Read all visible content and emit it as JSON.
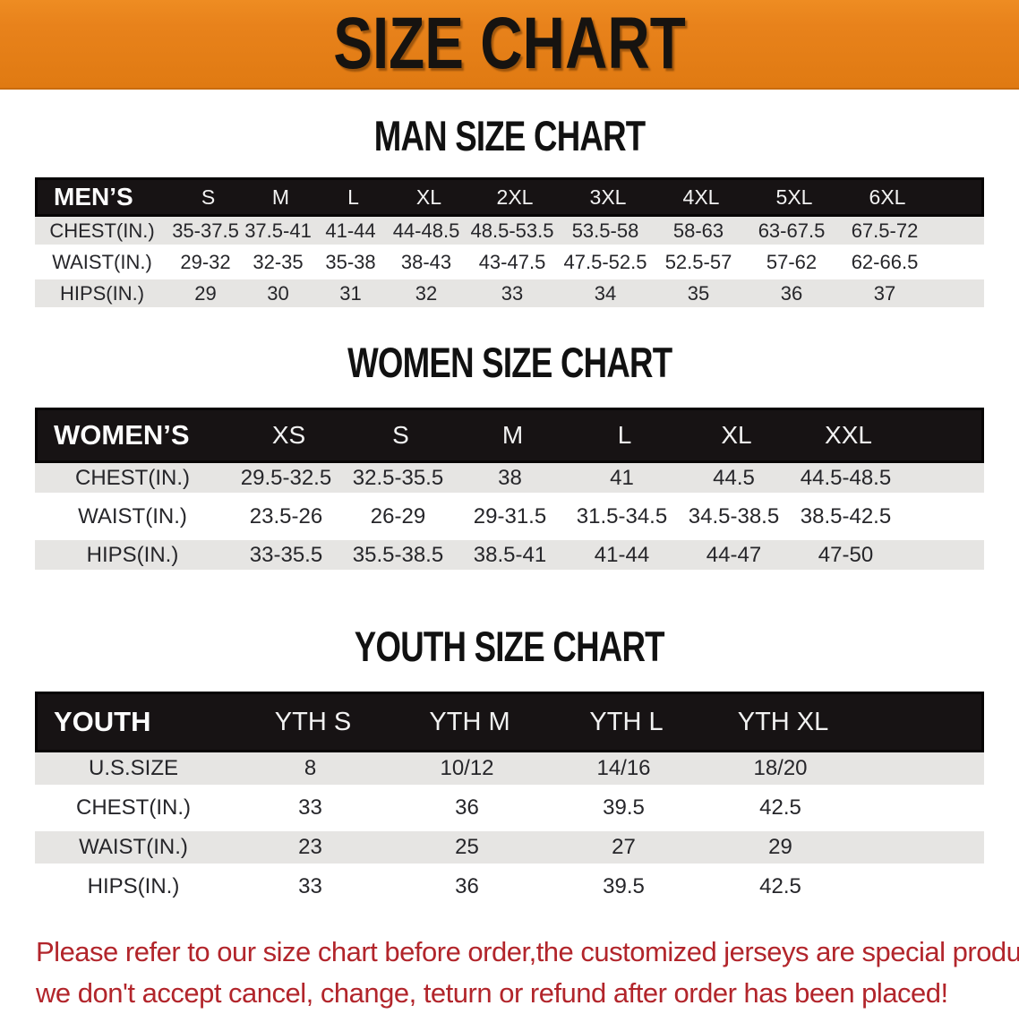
{
  "banner": {
    "title": "SIZE CHART"
  },
  "tables": [
    {
      "id": "men",
      "heading": "MAN SIZE CHART",
      "corner_label": "MEN’S",
      "sizes": [
        "S",
        "M",
        "L",
        "XL",
        "2XL",
        "3XL",
        "4XL",
        "5XL",
        "6XL"
      ],
      "rows": [
        {
          "label": "CHEST(IN.)",
          "values": [
            "35-37.5",
            "37.5-41",
            "41-44",
            "44-48.5",
            "48.5-53.5",
            "53.5-58",
            "58-63",
            "63-67.5",
            "67.5-72"
          ]
        },
        {
          "label": "WAIST(IN.)",
          "values": [
            "29-32",
            "32-35",
            "35-38",
            "38-43",
            "43-47.5",
            "47.5-52.5",
            "52.5-57",
            "57-62",
            "62-66.5"
          ]
        },
        {
          "label": "HIPS(IN.)",
          "values": [
            "29",
            "30",
            "31",
            "32",
            "33",
            "34",
            "35",
            "36",
            "37"
          ]
        }
      ]
    },
    {
      "id": "women",
      "heading": "WOMEN SIZE CHART",
      "corner_label": "WOMEN’S",
      "sizes": [
        "XS",
        "S",
        "M",
        "L",
        "XL",
        "XXL"
      ],
      "rows": [
        {
          "label": "CHEST(IN.)",
          "values": [
            "29.5-32.5",
            "32.5-35.5",
            "38",
            "41",
            "44.5",
            "44.5-48.5"
          ]
        },
        {
          "label": "WAIST(IN.)",
          "values": [
            "23.5-26",
            "26-29",
            "29-31.5",
            "31.5-34.5",
            "34.5-38.5",
            "38.5-42.5"
          ]
        },
        {
          "label": "HIPS(IN.)",
          "values": [
            "33-35.5",
            "35.5-38.5",
            "38.5-41",
            "41-44",
            "44-47",
            "47-50"
          ]
        }
      ]
    },
    {
      "id": "youth",
      "heading": "YOUTH SIZE CHART",
      "corner_label": "YOUTH",
      "sizes": [
        "YTH S",
        "YTH M",
        "YTH L",
        "YTH XL"
      ],
      "rows": [
        {
          "label": "U.S.SIZE",
          "values": [
            "8",
            "10/12",
            "14/16",
            "18/20"
          ]
        },
        {
          "label": "CHEST(IN.)",
          "values": [
            "33",
            "36",
            "39.5",
            "42.5"
          ]
        },
        {
          "label": "WAIST(IN.)",
          "values": [
            "23",
            "25",
            "27",
            "29"
          ]
        },
        {
          "label": "HIPS(IN.)",
          "values": [
            "33",
            "36",
            "39.5",
            "42.5"
          ]
        }
      ]
    }
  ],
  "disclaimer": {
    "line1": "Please refer to our size chart before order,the customized jerseys are special products,",
    "line2": "we don't accept cancel, change, teturn or refund after order has been placed!"
  },
  "colors": {
    "banner_orange": "#E8821B",
    "table_header_black": "#171314",
    "row_gray": "#E6E5E3",
    "disclaimer_red": "#B2252B"
  }
}
